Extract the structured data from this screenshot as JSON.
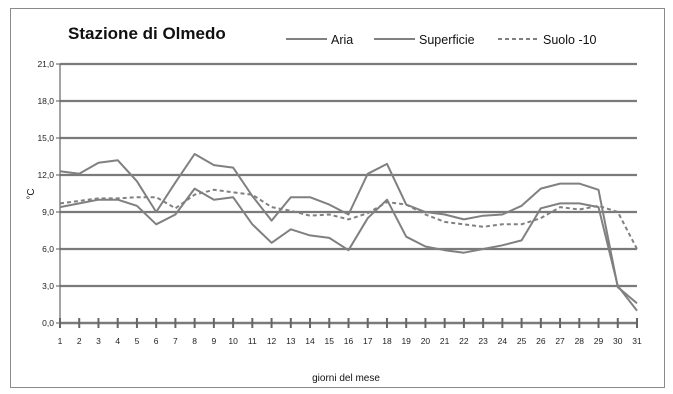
{
  "chart_data": {
    "type": "line",
    "title": "Stazione di Olmedo",
    "xlabel": "giorni del mese",
    "ylabel": "°C",
    "x": [
      1,
      2,
      3,
      4,
      5,
      6,
      7,
      8,
      9,
      10,
      11,
      12,
      13,
      14,
      15,
      16,
      17,
      18,
      19,
      20,
      21,
      22,
      23,
      24,
      25,
      26,
      27,
      28,
      29,
      30,
      31
    ],
    "y_ticks": [
      "0,0",
      "3,0",
      "6,0",
      "9,0",
      "12,0",
      "15,0",
      "18,0",
      "21,0"
    ],
    "ylim": [
      0,
      21
    ],
    "grid": "horizontal",
    "legend_position": "top",
    "series": [
      {
        "name": "Aria",
        "color": "#808080",
        "dash": "solid",
        "values": [
          9.4,
          9.7,
          10.0,
          10.0,
          9.5,
          8.0,
          8.8,
          10.9,
          10.0,
          10.2,
          8.0,
          6.5,
          7.6,
          7.1,
          6.9,
          5.9,
          8.5,
          10.0,
          7.0,
          6.2,
          5.9,
          5.7,
          6.0,
          6.3,
          6.7,
          9.3,
          9.7,
          9.7,
          9.4,
          3.0,
          1.0
        ]
      },
      {
        "name": "Superficie",
        "color": "#808080",
        "dash": "solid",
        "values": [
          12.3,
          12.1,
          13.0,
          13.2,
          11.5,
          9.0,
          11.4,
          13.7,
          12.8,
          12.6,
          10.3,
          8.3,
          10.2,
          10.2,
          9.6,
          8.8,
          12.1,
          12.9,
          9.6,
          9.0,
          8.8,
          8.4,
          8.7,
          8.8,
          9.5,
          10.9,
          11.3,
          11.3,
          10.8,
          2.9,
          1.6
        ]
      },
      {
        "name": "Suolo -10",
        "color": "#808080",
        "dash": "dashed",
        "values": [
          9.7,
          9.9,
          10.1,
          10.1,
          10.2,
          10.2,
          9.3,
          10.4,
          10.8,
          10.6,
          10.4,
          9.4,
          9.1,
          8.7,
          8.8,
          8.4,
          8.9,
          9.8,
          9.6,
          8.8,
          8.2,
          8.0,
          7.8,
          8.0,
          8.0,
          8.5,
          9.4,
          9.2,
          9.5,
          9.0,
          6.0
        ]
      }
    ]
  }
}
